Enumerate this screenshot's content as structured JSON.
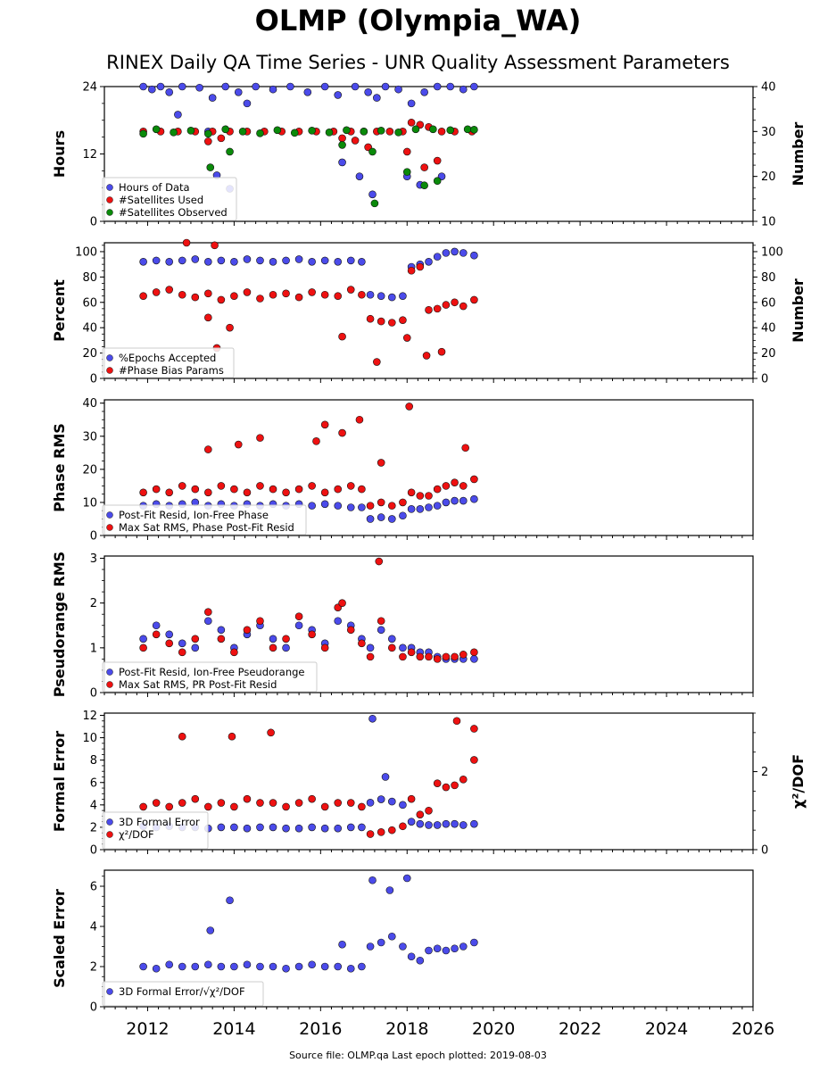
{
  "title": "OLMP (Olympia_WA)",
  "subtitle": "RINEX Daily QA Time Series - UNR Quality Assessment Parameters",
  "footer": "Source file: OLMP.qa Last epoch plotted: 2019-08-03",
  "colors": {
    "blue": "#4b4bea",
    "red": "#ee1111",
    "green": "#0a8a0a"
  },
  "chart_data": [
    {
      "type": "scatter",
      "ylabel": "Hours",
      "ylabel_right": "Number",
      "xlim": [
        2011,
        2026
      ],
      "ylim": [
        0,
        24
      ],
      "ylim_right": [
        10,
        40
      ],
      "yticks": [
        0,
        12,
        24
      ],
      "yticks_right": [
        10,
        20,
        30,
        40
      ],
      "legend": [
        "Hours of Data",
        "#Satellites Used",
        "#Satellites Observed"
      ],
      "series": [
        {
          "name": "Hours of Data",
          "color": "blue",
          "axis": "left",
          "x": [
            2011.9,
            2012.1,
            2012.3,
            2012.5,
            2012.8,
            2013.2,
            2013.5,
            2013.8,
            2014.1,
            2014.5,
            2014.9,
            2015.3,
            2015.7,
            2016.1,
            2016.4,
            2016.8,
            2017.1,
            2017.3,
            2017.5,
            2017.8,
            2018.1,
            2018.4,
            2018.7,
            2019.0,
            2019.3,
            2019.55,
            2012.7,
            2013.4,
            2013.9,
            2014.3,
            2016.5,
            2016.9,
            2017.2,
            2018.3,
            2018.0,
            2013.6,
            2018.8
          ],
          "y": [
            24,
            23.5,
            24,
            23,
            24,
            23.8,
            22,
            24,
            23,
            24,
            23.5,
            24,
            23,
            24,
            22.5,
            24,
            23,
            22,
            24,
            23.5,
            21,
            23,
            24,
            24,
            23.5,
            24,
            19,
            16,
            5.8,
            21,
            10.5,
            8,
            4.8,
            6.5,
            8,
            8.2,
            8
          ]
        },
        {
          "name": "#Satellites Used",
          "color": "red",
          "axis": "right",
          "x": [
            2011.9,
            2012.3,
            2012.7,
            2013.1,
            2013.5,
            2013.9,
            2014.3,
            2014.7,
            2015.1,
            2015.5,
            2015.9,
            2016.3,
            2016.7,
            2017.0,
            2017.3,
            2017.6,
            2017.9,
            2018.1,
            2018.3,
            2018.5,
            2018.8,
            2019.1,
            2019.5,
            2013.4,
            2013.7,
            2016.5,
            2016.8,
            2017.1,
            2018.0,
            2018.4,
            2018.7
          ],
          "y": [
            30,
            30,
            30,
            30,
            30,
            30,
            30,
            30,
            30,
            30,
            30,
            30,
            30,
            30,
            30,
            30,
            30,
            32,
            31.5,
            31,
            30,
            30,
            30,
            27.8,
            28.5,
            28.5,
            28,
            26.5,
            25.5,
            22,
            23.5
          ]
        },
        {
          "name": "#Satellites Observed",
          "color": "green",
          "axis": "right",
          "x": [
            2011.9,
            2012.2,
            2012.6,
            2013.0,
            2013.4,
            2013.8,
            2014.2,
            2014.6,
            2015.0,
            2015.4,
            2015.8,
            2016.2,
            2016.6,
            2017.0,
            2017.4,
            2017.8,
            2018.2,
            2018.6,
            2019.0,
            2019.4,
            2019.55,
            2013.45,
            2013.9,
            2016.5,
            2017.2,
            2017.25,
            2018.4,
            2018.7,
            2018.0
          ],
          "y": [
            29.5,
            30.5,
            29.8,
            30.2,
            29.5,
            30.5,
            30,
            29.6,
            30.3,
            29.7,
            30.2,
            29.8,
            30.3,
            30,
            30.2,
            29.8,
            30.5,
            30.5,
            30.3,
            30.5,
            30.4,
            22,
            25.5,
            27,
            25.5,
            14,
            18,
            19,
            21
          ]
        }
      ]
    },
    {
      "type": "scatter",
      "ylabel": "Percent",
      "ylabel_right": "Number",
      "xlim": [
        2011,
        2026
      ],
      "ylim": [
        0,
        107
      ],
      "ylim_right": [
        0,
        107
      ],
      "yticks": [
        0,
        20,
        40,
        60,
        80,
        100
      ],
      "yticks_right": [
        0,
        20,
        40,
        60,
        80,
        100
      ],
      "legend": [
        "%Epochs Accepted",
        "#Phase Bias Params"
      ],
      "series": [
        {
          "name": "%Epochs Accepted",
          "color": "blue",
          "axis": "left",
          "x": [
            2011.9,
            2012.2,
            2012.5,
            2012.8,
            2013.1,
            2013.4,
            2013.7,
            2014.0,
            2014.3,
            2014.6,
            2014.9,
            2015.2,
            2015.5,
            2015.8,
            2016.1,
            2016.4,
            2016.7,
            2016.95,
            2017.15,
            2017.4,
            2017.65,
            2017.9,
            2018.1,
            2018.3,
            2018.5,
            2018.7,
            2018.9,
            2019.1,
            2019.3,
            2019.55
          ],
          "y": [
            92,
            93,
            92,
            93,
            94,
            92,
            93,
            92,
            94,
            93,
            92,
            93,
            94,
            92,
            93,
            92,
            93,
            92,
            66,
            65,
            64,
            65,
            88,
            90,
            92,
            96,
            99,
            100,
            99,
            97
          ]
        },
        {
          "name": "#Phase Bias Params",
          "color": "red",
          "axis": "right",
          "x": [
            2011.9,
            2012.2,
            2012.5,
            2012.8,
            2013.1,
            2013.4,
            2013.7,
            2014.0,
            2014.3,
            2014.6,
            2014.9,
            2015.2,
            2015.5,
            2015.8,
            2016.1,
            2016.4,
            2016.7,
            2016.95,
            2017.15,
            2017.4,
            2017.65,
            2017.9,
            2018.1,
            2018.3,
            2018.5,
            2018.7,
            2018.9,
            2019.1,
            2019.3,
            2019.55,
            2012.9,
            2013.55,
            2013.9,
            2017.3,
            2018.0,
            2018.45,
            2018.8,
            2013.6,
            2013.4,
            2016.5
          ],
          "y": [
            65,
            68,
            70,
            66,
            64,
            67,
            62,
            65,
            68,
            63,
            66,
            67,
            64,
            68,
            66,
            65,
            70,
            66,
            47,
            45,
            44,
            46,
            85,
            88,
            54,
            55,
            58,
            60,
            57,
            62,
            108,
            105,
            40,
            13,
            32,
            18,
            21,
            24,
            48,
            33
          ]
        }
      ]
    },
    {
      "type": "scatter",
      "ylabel": "Phase RMS",
      "xlim": [
        2011,
        2026
      ],
      "ylim": [
        0,
        41
      ],
      "yticks": [
        0,
        10,
        20,
        30,
        40
      ],
      "legend": [
        "Post-Fit Resid, Ion-Free Phase",
        "Max Sat RMS, Phase Post-Fit Resid"
      ],
      "series": [
        {
          "name": "Post-Fit Resid, Ion-Free Phase",
          "color": "blue",
          "x": [
            2011.9,
            2012.2,
            2012.5,
            2012.8,
            2013.1,
            2013.4,
            2013.7,
            2014.0,
            2014.3,
            2014.6,
            2014.9,
            2015.2,
            2015.5,
            2015.8,
            2016.1,
            2016.4,
            2016.7,
            2016.95,
            2017.15,
            2017.4,
            2017.65,
            2017.9,
            2018.1,
            2018.3,
            2018.5,
            2018.7,
            2018.9,
            2019.1,
            2019.3,
            2019.55
          ],
          "y": [
            9,
            9.5,
            9,
            9.5,
            10,
            9,
            9.5,
            9,
            9.5,
            9,
            9.5,
            9,
            9.5,
            9,
            9.5,
            9,
            8.5,
            8.5,
            5,
            5.5,
            5,
            6,
            8,
            8,
            8.5,
            9,
            10,
            10.5,
            10.5,
            11
          ]
        },
        {
          "name": "Max Sat RMS, Phase Post-Fit Resid",
          "color": "red",
          "x": [
            2011.9,
            2012.2,
            2012.5,
            2012.8,
            2013.1,
            2013.4,
            2013.7,
            2014.0,
            2014.3,
            2014.6,
            2014.9,
            2015.2,
            2015.5,
            2015.8,
            2016.1,
            2016.4,
            2016.7,
            2016.95,
            2017.15,
            2017.4,
            2017.65,
            2017.9,
            2018.1,
            2018.3,
            2018.5,
            2018.7,
            2018.9,
            2019.1,
            2019.3,
            2019.55,
            2014.1,
            2014.6,
            2015.9,
            2016.1,
            2016.5,
            2016.9,
            2017.4,
            2018.05,
            2019.35,
            2013.4
          ],
          "y": [
            13,
            14,
            13,
            15,
            14,
            13,
            15,
            14,
            13,
            15,
            14,
            13,
            14,
            15,
            13,
            14,
            15,
            14,
            9,
            10,
            9,
            10,
            13,
            12,
            12,
            14,
            15,
            16,
            15,
            17,
            27.5,
            29.5,
            28.5,
            33.5,
            31,
            35,
            22,
            39,
            26.5,
            26
          ]
        }
      ]
    },
    {
      "type": "scatter",
      "ylabel": "Pseudorange RMS",
      "xlim": [
        2011,
        2026
      ],
      "ylim": [
        0,
        3.05
      ],
      "yticks": [
        0,
        1,
        2,
        3
      ],
      "legend": [
        "Post-Fit Resid, Ion-Free Pseudorange",
        "Max Sat RMS, PR Post-Fit Resid"
      ],
      "series": [
        {
          "name": "Post-Fit Resid, Ion-Free Pseudorange",
          "color": "blue",
          "x": [
            2011.9,
            2012.2,
            2012.5,
            2012.8,
            2013.1,
            2013.4,
            2013.7,
            2014.0,
            2014.3,
            2014.6,
            2014.9,
            2015.2,
            2015.5,
            2015.8,
            2016.1,
            2016.4,
            2016.7,
            2016.95,
            2017.15,
            2017.4,
            2017.65,
            2017.9,
            2018.1,
            2018.3,
            2018.5,
            2018.7,
            2018.9,
            2019.1,
            2019.3,
            2019.55
          ],
          "y": [
            1.2,
            1.5,
            1.3,
            1.1,
            1.0,
            1.6,
            1.4,
            1.0,
            1.3,
            1.5,
            1.2,
            1.0,
            1.5,
            1.4,
            1.1,
            1.6,
            1.5,
            1.2,
            1.0,
            1.4,
            1.2,
            1.0,
            1.0,
            0.9,
            0.9,
            0.8,
            0.75,
            0.75,
            0.75,
            0.75
          ]
        },
        {
          "name": "Max Sat RMS, PR Post-Fit Resid",
          "color": "red",
          "x": [
            2011.9,
            2012.2,
            2012.5,
            2012.8,
            2013.1,
            2013.4,
            2013.7,
            2014.0,
            2014.3,
            2014.6,
            2014.9,
            2015.2,
            2015.5,
            2015.8,
            2016.1,
            2016.4,
            2016.7,
            2016.95,
            2017.15,
            2017.4,
            2017.65,
            2017.9,
            2018.1,
            2018.3,
            2018.5,
            2018.7,
            2018.9,
            2019.1,
            2019.3,
            2019.55,
            2017.35,
            2016.5
          ],
          "y": [
            1.0,
            1.3,
            1.1,
            0.9,
            1.2,
            1.8,
            1.2,
            0.9,
            1.4,
            1.6,
            1.0,
            1.2,
            1.7,
            1.3,
            1.0,
            1.9,
            1.4,
            1.1,
            0.8,
            1.6,
            1.0,
            0.8,
            0.9,
            0.8,
            0.8,
            0.75,
            0.8,
            0.8,
            0.85,
            0.9,
            2.93,
            2.0
          ]
        }
      ]
    },
    {
      "type": "scatter",
      "ylabel": "Formal Error",
      "ylabel_right": "χ²/DOF",
      "xlim": [
        2011,
        2026
      ],
      "ylim": [
        0,
        12.2
      ],
      "ylim_right": [
        0,
        3.5
      ],
      "yticks": [
        0,
        2,
        4,
        6,
        8,
        10,
        12
      ],
      "yticks_right": [
        0,
        2
      ],
      "legend": [
        "3D Formal Error",
        "χ²/DOF"
      ],
      "series": [
        {
          "name": "3D Formal Error",
          "color": "blue",
          "axis": "left",
          "x": [
            2011.9,
            2012.2,
            2012.5,
            2012.8,
            2013.1,
            2013.4,
            2013.7,
            2014.0,
            2014.3,
            2014.6,
            2014.9,
            2015.2,
            2015.5,
            2015.8,
            2016.1,
            2016.4,
            2016.7,
            2016.95,
            2017.15,
            2017.4,
            2017.65,
            2017.9,
            2018.1,
            2018.3,
            2018.5,
            2018.7,
            2018.9,
            2019.1,
            2019.3,
            2019.55,
            2017.2,
            2017.5
          ],
          "y": [
            2.1,
            2.0,
            2.1,
            2.0,
            2.0,
            1.9,
            2.0,
            2.0,
            1.9,
            2.0,
            2.0,
            1.9,
            1.9,
            2.0,
            1.9,
            1.9,
            2.0,
            2.0,
            4.2,
            4.5,
            4.3,
            4.0,
            2.5,
            2.3,
            2.2,
            2.2,
            2.3,
            2.3,
            2.2,
            2.3,
            11.7,
            6.5
          ]
        },
        {
          "name": "χ²/DOF",
          "color": "red",
          "axis": "right",
          "x": [
            2011.9,
            2012.2,
            2012.5,
            2012.8,
            2013.1,
            2013.4,
            2013.7,
            2014.0,
            2014.3,
            2014.6,
            2014.9,
            2015.2,
            2015.5,
            2015.8,
            2016.1,
            2016.4,
            2016.7,
            2016.95,
            2017.15,
            2017.4,
            2017.65,
            2017.9,
            2018.1,
            2018.3,
            2018.5,
            2018.7,
            2018.9,
            2019.1,
            2019.3,
            2019.55,
            2012.8,
            2013.95,
            2014.85,
            2019.15,
            2019.55
          ],
          "y": [
            1.1,
            1.2,
            1.1,
            1.2,
            1.3,
            1.1,
            1.2,
            1.1,
            1.3,
            1.2,
            1.2,
            1.1,
            1.2,
            1.3,
            1.1,
            1.2,
            1.2,
            1.1,
            0.4,
            0.45,
            0.5,
            0.6,
            1.3,
            0.9,
            1.0,
            1.7,
            1.6,
            1.65,
            1.8,
            2.3,
            2.9,
            2.9,
            3.0,
            3.3,
            3.1
          ]
        }
      ]
    },
    {
      "type": "scatter",
      "ylabel": "Scaled Error",
      "xlim": [
        2011,
        2026
      ],
      "ylim": [
        0,
        6.8
      ],
      "yticks": [
        0,
        2,
        4,
        6
      ],
      "xticks": [
        2012,
        2014,
        2016,
        2018,
        2020,
        2022,
        2024,
        2026
      ],
      "legend": [
        "3D Formal Error/√χ²/DOF"
      ],
      "series": [
        {
          "name": "3D Formal Error/√χ²/DOF",
          "color": "blue",
          "x": [
            2011.9,
            2012.2,
            2012.5,
            2012.8,
            2013.1,
            2013.4,
            2013.7,
            2014.0,
            2014.3,
            2014.6,
            2014.9,
            2015.2,
            2015.5,
            2015.8,
            2016.1,
            2016.4,
            2016.7,
            2016.95,
            2017.15,
            2017.4,
            2017.65,
            2017.9,
            2018.1,
            2018.3,
            2018.5,
            2018.7,
            2018.9,
            2019.1,
            2019.3,
            2019.55,
            2013.9,
            2017.2,
            2017.6,
            2018.0,
            2013.45,
            2016.5
          ],
          "y": [
            2.0,
            1.9,
            2.1,
            2.0,
            2.0,
            2.1,
            2.0,
            2.0,
            2.1,
            2.0,
            2.0,
            1.9,
            2.0,
            2.1,
            2.0,
            2.0,
            1.9,
            2.0,
            3.0,
            3.2,
            3.5,
            3.0,
            2.5,
            2.3,
            2.8,
            2.9,
            2.8,
            2.9,
            3.0,
            3.2,
            5.3,
            6.3,
            5.8,
            6.4,
            3.8,
            3.1
          ]
        }
      ]
    }
  ]
}
